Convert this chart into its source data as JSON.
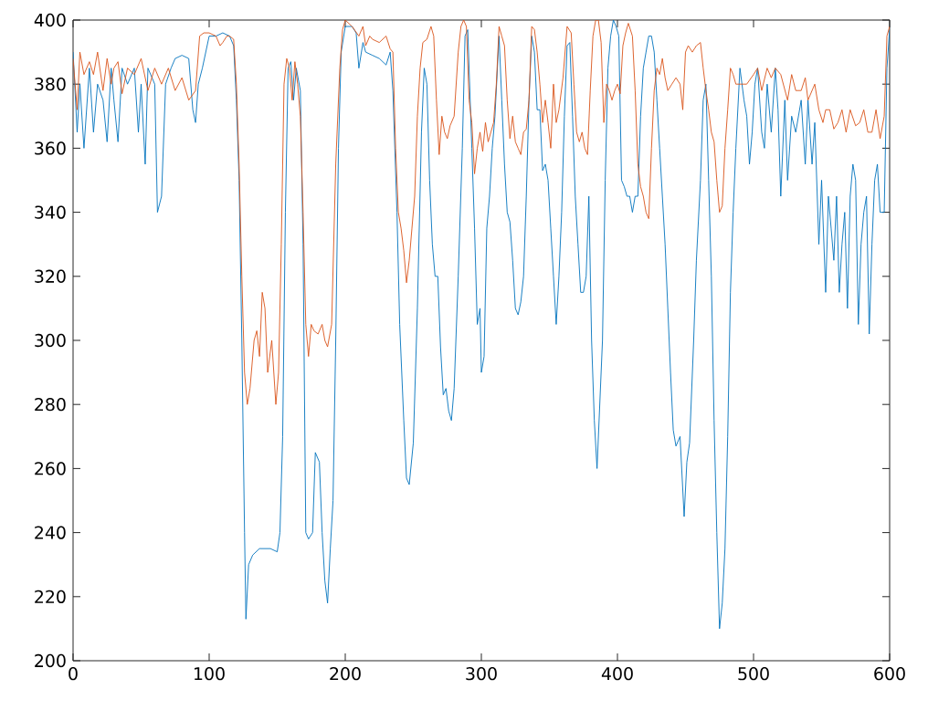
{
  "chart_data": {
    "type": "line",
    "xlim": [
      0,
      600
    ],
    "ylim": [
      200,
      400
    ],
    "xticks": [
      0,
      100,
      200,
      300,
      400,
      500,
      600
    ],
    "yticks": [
      200,
      220,
      240,
      260,
      280,
      300,
      320,
      340,
      360,
      380,
      400
    ],
    "grid": false,
    "marker": "none",
    "line_style": "solid",
    "series": [
      {
        "color": "#0072bd",
        "x": [
          0,
          3,
          5,
          8,
          12,
          15,
          18,
          22,
          25,
          28,
          30,
          33,
          36,
          40,
          45,
          48,
          50,
          53,
          55,
          60,
          62,
          65,
          68,
          72,
          75,
          80,
          85,
          88,
          90,
          92,
          95,
          100,
          105,
          110,
          115,
          118,
          120,
          122,
          124,
          126,
          127,
          129,
          132,
          137,
          145,
          150,
          152,
          154,
          156,
          158,
          160,
          162,
          164,
          167,
          169,
          171,
          173,
          176,
          178,
          181,
          183,
          185,
          187,
          189,
          191,
          193,
          195,
          197,
          200,
          205,
          208,
          210,
          213,
          215,
          220,
          225,
          230,
          233,
          235,
          238,
          240,
          243,
          245,
          247,
          250,
          253,
          256,
          258,
          260,
          262,
          264,
          266,
          268,
          270,
          272,
          274,
          276,
          278,
          280,
          283,
          286,
          288,
          290,
          293,
          295,
          297,
          299,
          300,
          302,
          304,
          306,
          308,
          310,
          313,
          315,
          317,
          319,
          321,
          323,
          325,
          327,
          329,
          331,
          333,
          335,
          337,
          339,
          341,
          343,
          345,
          347,
          349,
          351,
          353,
          355,
          357,
          359,
          361,
          363,
          365,
          367,
          369,
          371,
          373,
          375,
          377,
          379,
          381,
          383,
          385,
          387,
          389,
          391,
          393,
          395,
          397,
          399,
          401,
          403,
          405,
          407,
          409,
          411,
          413,
          415,
          417,
          419,
          421,
          423,
          425,
          427,
          429,
          431,
          433,
          435,
          437,
          439,
          441,
          443,
          446,
          449,
          451,
          453,
          456,
          458,
          461,
          463,
          465,
          467,
          469,
          471,
          473,
          475,
          477,
          479,
          481,
          483,
          485,
          487,
          490,
          493,
          495,
          497,
          499,
          501,
          503,
          506,
          508,
          510,
          513,
          516,
          518,
          520,
          523,
          525,
          528,
          531,
          535,
          538,
          540,
          543,
          545,
          548,
          550,
          553,
          555,
          557,
          559,
          561,
          563,
          565,
          567,
          569,
          571,
          573,
          575,
          577,
          579,
          581,
          583,
          585,
          587,
          589,
          591,
          593,
          596,
          598,
          600
        ],
        "values": [
          390,
          365,
          380,
          360,
          385,
          365,
          380,
          375,
          362,
          385,
          375,
          362,
          385,
          380,
          385,
          365,
          380,
          355,
          385,
          380,
          340,
          345,
          380,
          385,
          388,
          389,
          388,
          372,
          368,
          380,
          385,
          395,
          395,
          396,
          395,
          392,
          375,
          350,
          300,
          240,
          213,
          230,
          233,
          235,
          235,
          234,
          240,
          270,
          340,
          385,
          387,
          375,
          385,
          378,
          330,
          240,
          238,
          240,
          265,
          262,
          240,
          225,
          218,
          235,
          250,
          300,
          360,
          390,
          398,
          398,
          396,
          385,
          393,
          390,
          389,
          388,
          386,
          390,
          378,
          340,
          305,
          275,
          257,
          255,
          268,
          310,
          365,
          385,
          380,
          350,
          330,
          320,
          320,
          298,
          283,
          285,
          278,
          275,
          285,
          320,
          360,
          395,
          397,
          360,
          335,
          305,
          310,
          290,
          295,
          335,
          345,
          360,
          370,
          395,
          375,
          355,
          340,
          337,
          325,
          310,
          308,
          312,
          320,
          345,
          375,
          395,
          390,
          372,
          372,
          353,
          355,
          350,
          335,
          320,
          305,
          320,
          340,
          370,
          392,
          393,
          370,
          345,
          330,
          315,
          315,
          320,
          345,
          300,
          275,
          260,
          280,
          300,
          350,
          385,
          395,
          400,
          398,
          395,
          350,
          348,
          345,
          345,
          340,
          345,
          345,
          370,
          385,
          390,
          395,
          395,
          390,
          375,
          360,
          345,
          330,
          310,
          290,
          272,
          267,
          270,
          245,
          262,
          268,
          300,
          325,
          350,
          375,
          380,
          350,
          320,
          275,
          240,
          210,
          218,
          235,
          270,
          315,
          340,
          360,
          385,
          375,
          370,
          355,
          365,
          380,
          385,
          365,
          360,
          380,
          365,
          385,
          372,
          345,
          375,
          350,
          370,
          365,
          375,
          355,
          375,
          355,
          368,
          330,
          350,
          315,
          345,
          335,
          325,
          345,
          315,
          330,
          340,
          310,
          345,
          355,
          350,
          305,
          330,
          340,
          345,
          302,
          330,
          350,
          355,
          340,
          340,
          385,
          397
        ]
      },
      {
        "color": "#d95319",
        "x": [
          0,
          3,
          5,
          8,
          12,
          15,
          18,
          22,
          25,
          28,
          30,
          33,
          36,
          40,
          45,
          50,
          55,
          60,
          65,
          70,
          75,
          80,
          85,
          90,
          93,
          96,
          100,
          105,
          108,
          110,
          113,
          115,
          118,
          120,
          122,
          124,
          126,
          128,
          130,
          133,
          135,
          137,
          139,
          141,
          143,
          146,
          149,
          151,
          153,
          155,
          157,
          159,
          161,
          163,
          165,
          167,
          169,
          171,
          173,
          175,
          177,
          180,
          183,
          185,
          187,
          190,
          193,
          196,
          198,
          200,
          205,
          210,
          213,
          215,
          218,
          220,
          225,
          230,
          233,
          235,
          237,
          239,
          241,
          243,
          245,
          247,
          249,
          251,
          253,
          255,
          257,
          260,
          263,
          265,
          267,
          269,
          271,
          273,
          275,
          277,
          280,
          283,
          285,
          287,
          289,
          291,
          293,
          295,
          297,
          299,
          301,
          303,
          305,
          307,
          309,
          311,
          313,
          315,
          317,
          319,
          321,
          323,
          325,
          327,
          329,
          331,
          333,
          335,
          337,
          339,
          341,
          343,
          345,
          347,
          349,
          351,
          353,
          355,
          357,
          360,
          363,
          366,
          368,
          370,
          372,
          374,
          376,
          378,
          380,
          382,
          384,
          386,
          388,
          390,
          392,
          394,
          396,
          398,
          400,
          402,
          404,
          406,
          408,
          411,
          413,
          415,
          417,
          419,
          421,
          423,
          425,
          427,
          429,
          431,
          433,
          435,
          437,
          440,
          443,
          446,
          448,
          450,
          452,
          455,
          458,
          461,
          463,
          465,
          467,
          469,
          471,
          473,
          475,
          477,
          479,
          481,
          483,
          485,
          487,
          490,
          495,
          500,
          503,
          506,
          510,
          513,
          516,
          520,
          525,
          528,
          531,
          535,
          538,
          540,
          545,
          548,
          551,
          553,
          556,
          559,
          562,
          565,
          568,
          571,
          575,
          578,
          581,
          584,
          587,
          590,
          593,
          596,
          598,
          600
        ],
        "values": [
          388,
          372,
          390,
          383,
          387,
          383,
          390,
          378,
          388,
          380,
          385,
          387,
          377,
          385,
          383,
          388,
          378,
          385,
          380,
          385,
          378,
          382,
          375,
          378,
          395,
          396,
          396,
          395,
          392,
          393,
          395,
          395,
          394,
          380,
          355,
          320,
          290,
          280,
          285,
          300,
          303,
          295,
          315,
          310,
          290,
          300,
          280,
          290,
          330,
          380,
          388,
          385,
          375,
          387,
          380,
          370,
          340,
          305,
          295,
          305,
          303,
          302,
          305,
          300,
          298,
          305,
          355,
          385,
          397,
          400,
          398,
          395,
          398,
          392,
          395,
          394,
          393,
          395,
          391,
          390,
          360,
          340,
          335,
          328,
          318,
          325,
          335,
          345,
          370,
          385,
          393,
          394,
          398,
          395,
          375,
          358,
          370,
          365,
          363,
          367,
          370,
          390,
          398,
          400,
          398,
          375,
          368,
          352,
          360,
          365,
          359,
          368,
          362,
          365,
          368,
          380,
          398,
          395,
          392,
          375,
          363,
          370,
          362,
          360,
          358,
          365,
          366,
          375,
          398,
          397,
          390,
          380,
          368,
          375,
          368,
          360,
          380,
          368,
          372,
          382,
          398,
          396,
          380,
          365,
          362,
          365,
          360,
          358,
          378,
          395,
          400,
          400,
          393,
          368,
          380,
          378,
          375,
          378,
          380,
          377,
          392,
          396,
          399,
          395,
          378,
          355,
          348,
          345,
          340,
          338,
          360,
          378,
          385,
          383,
          388,
          382,
          378,
          380,
          382,
          380,
          372,
          390,
          392,
          390,
          392,
          393,
          385,
          378,
          372,
          365,
          362,
          350,
          340,
          342,
          360,
          372,
          385,
          383,
          380,
          380,
          380,
          383,
          385,
          378,
          385,
          382,
          385,
          383,
          375,
          383,
          378,
          378,
          382,
          375,
          380,
          372,
          368,
          372,
          372,
          366,
          368,
          372,
          365,
          372,
          367,
          368,
          372,
          365,
          365,
          372,
          363,
          370,
          395,
          398
        ]
      }
    ]
  }
}
